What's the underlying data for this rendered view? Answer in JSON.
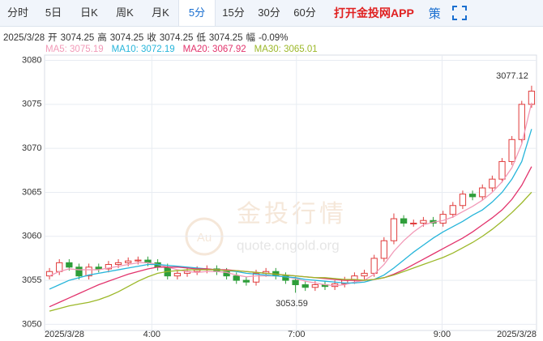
{
  "toolbar": {
    "tabs": [
      "分时",
      "5日",
      "日K",
      "周K",
      "月K",
      "5分",
      "15分",
      "30分",
      "60分"
    ],
    "active": 5,
    "app_link": "打开金投网APP",
    "strategy": "策"
  },
  "info": {
    "date": "2025/3/28",
    "items": [
      {
        "label": "开",
        "value": "3074.25"
      },
      {
        "label": "高",
        "value": "3074.25"
      },
      {
        "label": "收",
        "value": "3074.25"
      },
      {
        "label": "低",
        "value": "3074.25"
      },
      {
        "label": "幅",
        "value": "-0.09%"
      }
    ]
  },
  "watermark": {
    "logo": "Au",
    "title": "金投行情",
    "url": "quote.cngold.org"
  },
  "chart_data": {
    "type": "candlestick",
    "open": [
      3055.5,
      3056,
      3057,
      3056.5,
      3055.5,
      3056.5,
      3056.3,
      3056.8,
      3057,
      3057.2,
      3057.3,
      3057,
      3056.5,
      3055.5,
      3055.8,
      3056,
      3056.2,
      3056.3,
      3056,
      3055.5,
      3055,
      3054.8,
      3055.8,
      3056,
      3055.5,
      3055,
      3054.5,
      3054.2,
      3054.5,
      3054.3,
      3054.6,
      3055,
      3055.5,
      3055.8,
      3057.5,
      3059.5,
      3062,
      3061.5,
      3061.5,
      3061.8,
      3061.5,
      3062.5,
      3063.5,
      3064.8,
      3064.5,
      3065.5,
      3066.5,
      3068.5,
      3071,
      3075
    ],
    "high": [
      3056.4,
      3057.4,
      3057.4,
      3056.9,
      3056.9,
      3056.9,
      3057.2,
      3057.4,
      3057.6,
      3057.7,
      3057.7,
      3057.4,
      3056.9,
      3056.2,
      3056.4,
      3056.6,
      3056.7,
      3056.7,
      3056.4,
      3055.9,
      3055.4,
      3056.2,
      3056.4,
      3056.4,
      3055.9,
      3055.4,
      3054.9,
      3054.9,
      3054.9,
      3055,
      3055.4,
      3055.9,
      3056.2,
      3057.9,
      3059.9,
      3062.6,
      3062.4,
      3061.9,
      3062.2,
      3062.2,
      3062.9,
      3063.9,
      3065.2,
      3065.2,
      3065.9,
      3066.9,
      3068.9,
      3071.4,
      3075.4,
      3077.12
    ],
    "low": [
      3055.1,
      3055.6,
      3056.1,
      3055.1,
      3055.1,
      3055.9,
      3055.9,
      3056.4,
      3056.6,
      3056.8,
      3056.6,
      3056.1,
      3055.1,
      3055.1,
      3055.4,
      3055.6,
      3055.8,
      3055.6,
      3055.1,
      3054.6,
      3054.4,
      3054.4,
      3055.4,
      3055.1,
      3054.6,
      3053.59,
      3053.8,
      3053.8,
      3053.9,
      3053.9,
      3054.2,
      3054.6,
      3055.1,
      3055.4,
      3057.1,
      3059.1,
      3061.1,
      3061.1,
      3061.1,
      3061.1,
      3061.1,
      3062.1,
      3063.1,
      3064.1,
      3064.1,
      3065.1,
      3066.1,
      3068.1,
      3070.6,
      3074.6
    ],
    "close": [
      3056,
      3057,
      3056.5,
      3055.5,
      3056.5,
      3056.3,
      3056.8,
      3057,
      3057.2,
      3057.3,
      3057,
      3056.5,
      3055.5,
      3055.8,
      3056,
      3056.2,
      3056.3,
      3056,
      3055.5,
      3055,
      3054.8,
      3055.8,
      3056,
      3055.5,
      3055,
      3054.5,
      3054.2,
      3054.5,
      3054.3,
      3054.6,
      3055,
      3055.5,
      3055.8,
      3057.5,
      3059.5,
      3062,
      3061.5,
      3061.5,
      3061.8,
      3061.5,
      3062.5,
      3063.5,
      3064.8,
      3064.5,
      3065.5,
      3066.5,
      3068.5,
      3071,
      3075,
      3076.5
    ],
    "up_color": "#e03c3c",
    "down_color": "#2e9e3a",
    "series": [
      {
        "legend": "MA5: 3075.19",
        "color": "#f29ab8",
        "values": [
          3055.5,
          3056,
          3056.3,
          3056.2,
          3056.2,
          3056.2,
          3056.4,
          3056.6,
          3056.8,
          3057,
          3057,
          3056.8,
          3056.5,
          3056.2,
          3056,
          3055.9,
          3056,
          3056,
          3055.9,
          3055.6,
          3055.4,
          3055.5,
          3055.5,
          3055.5,
          3055.4,
          3055.2,
          3054.9,
          3054.7,
          3054.5,
          3054.4,
          3054.5,
          3054.8,
          3055,
          3055.7,
          3056.8,
          3058.3,
          3059.5,
          3060.5,
          3061.3,
          3061.6,
          3061.8,
          3062.2,
          3062.8,
          3063.4,
          3064.1,
          3065,
          3066.2,
          3067.8,
          3070.5,
          3075.19
        ]
      },
      {
        "legend": "MA10: 3072.19",
        "color": "#26b5da",
        "values": [
          3054,
          3054.5,
          3055,
          3055.3,
          3055.6,
          3055.8,
          3056,
          3056.2,
          3056.4,
          3056.6,
          3056.8,
          3056.8,
          3056.7,
          3056.6,
          3056.5,
          3056.4,
          3056.3,
          3056.2,
          3056.1,
          3056,
          3055.8,
          3055.7,
          3055.6,
          3055.5,
          3055.4,
          3055.3,
          3055.1,
          3055,
          3054.9,
          3054.8,
          3054.7,
          3054.7,
          3054.8,
          3055.1,
          3055.6,
          3056.4,
          3057.3,
          3058.2,
          3059,
          3059.8,
          3060.5,
          3061.1,
          3061.7,
          3062.4,
          3063,
          3063.9,
          3065,
          3066.5,
          3068.5,
          3072.19
        ]
      },
      {
        "legend": "MA20: 3067.92",
        "color": "#e2336c",
        "values": [
          3052,
          3052.5,
          3053,
          3053.5,
          3054,
          3054.5,
          3054.9,
          3055.3,
          3055.7,
          3056,
          3056.3,
          3056.5,
          3056.5,
          3056.5,
          3056.4,
          3056.3,
          3056.3,
          3056.2,
          3056.2,
          3056.1,
          3056,
          3055.9,
          3055.8,
          3055.7,
          3055.6,
          3055.5,
          3055.4,
          3055.3,
          3055.2,
          3055.1,
          3055,
          3055,
          3055,
          3055.1,
          3055.3,
          3055.7,
          3056.2,
          3056.8,
          3057.4,
          3058,
          3058.6,
          3059.2,
          3059.8,
          3060.5,
          3061.3,
          3062.1,
          3063,
          3064.2,
          3065.8,
          3067.92
        ]
      },
      {
        "legend": "MA30: 3065.01",
        "color": "#9cb829",
        "values": [
          3051.5,
          3051.8,
          3052.1,
          3052.3,
          3052.5,
          3052.8,
          3053.2,
          3053.7,
          3054.3,
          3054.9,
          3055.4,
          3055.8,
          3056,
          3056.1,
          3056.2,
          3056.2,
          3056.2,
          3056.2,
          3056.1,
          3056.1,
          3056,
          3055.9,
          3055.8,
          3055.7,
          3055.6,
          3055.5,
          3055.4,
          3055.3,
          3055.3,
          3055.2,
          3055.1,
          3055.1,
          3055,
          3055.1,
          3055.3,
          3055.6,
          3056,
          3056.4,
          3056.8,
          3057.2,
          3057.6,
          3058.1,
          3058.7,
          3059.3,
          3060,
          3060.8,
          3061.7,
          3062.7,
          3063.8,
          3065.01
        ]
      }
    ],
    "max_label": "3077.12",
    "min_label": "3053.59",
    "xlim": [
      0,
      50
    ],
    "xticks": [
      {
        "value": 0,
        "label": "2025/3/28"
      },
      {
        "value": 10.9,
        "label": "4:00"
      },
      {
        "value": 25.6,
        "label": "7:00"
      },
      {
        "value": 40.4,
        "label": "9:00"
      },
      {
        "value": 50,
        "label": "2025/3/28"
      }
    ],
    "ylim": [
      3049.3,
      3080.6
    ],
    "yticks": [
      3050,
      3055,
      3060,
      3065,
      3070,
      3075,
      3080
    ],
    "grid": true
  }
}
